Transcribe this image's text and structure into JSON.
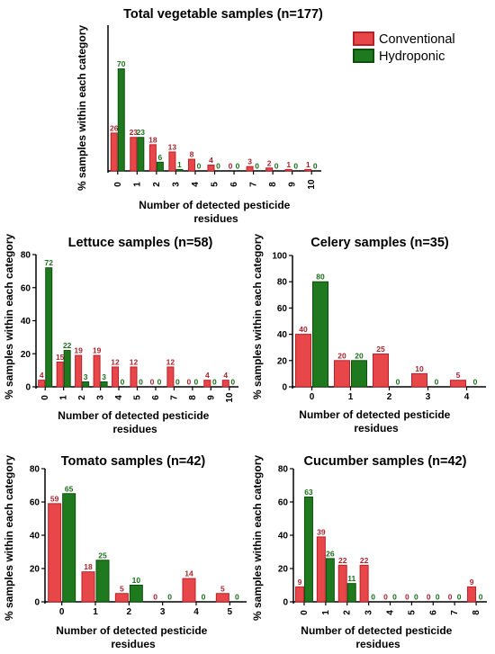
{
  "colors": {
    "conventional": "#e8474a",
    "conventional_stroke": "#b8202a",
    "hydroponic": "#1f7a1f",
    "hydroponic_stroke": "#0e4d0e",
    "conv_label": "#a8242c",
    "hydro_label": "#1b6e1b"
  },
  "legend": {
    "conventional": "Conventional",
    "hydroponic": "Hydroponic"
  },
  "chart_data": [
    {
      "type": "bar",
      "title": "Total vegetable samples (n=177)",
      "xlabel": "Number of detected pesticide residues",
      "ylabel": "% samples within each category",
      "categories": [
        "0",
        "1",
        "2",
        "3",
        "4",
        "5",
        "6",
        "7",
        "8",
        "9",
        "10"
      ],
      "ylim": [
        0,
        100
      ],
      "yticks": [],
      "series": [
        {
          "name": "Conventional",
          "values": [
            26,
            23,
            18,
            13,
            8,
            4,
            0,
            3,
            2,
            1,
            1
          ]
        },
        {
          "name": "Hydroponic",
          "values": [
            70,
            23,
            6,
            1,
            0,
            0,
            0,
            0,
            0,
            0,
            0
          ]
        }
      ]
    },
    {
      "type": "bar",
      "title": "Lettuce samples (n=58)",
      "xlabel": "Number of detected pesticide residues",
      "ylabel": "% samples within each category",
      "categories": [
        "0",
        "1",
        "2",
        "3",
        "4",
        "5",
        "6",
        "7",
        "8",
        "9",
        "10"
      ],
      "ylim": [
        0,
        80
      ],
      "yticks": [
        0,
        20,
        40,
        60,
        80
      ],
      "series": [
        {
          "name": "Conventional",
          "values": [
            4,
            15,
            19,
            19,
            12,
            12,
            0,
            12,
            0,
            4,
            4
          ]
        },
        {
          "name": "Hydroponic",
          "values": [
            72,
            22,
            3,
            3,
            0,
            0,
            0,
            0,
            0,
            0,
            0
          ]
        }
      ]
    },
    {
      "type": "bar",
      "title": "Celery samples (n=35)",
      "xlabel": "Number of detected pesticide residues",
      "ylabel": "% samples within each category",
      "categories": [
        "0",
        "1",
        "2",
        "3",
        "4"
      ],
      "ylim": [
        0,
        100
      ],
      "yticks": [
        0,
        20,
        40,
        60,
        80,
        100
      ],
      "series": [
        {
          "name": "Conventional",
          "values": [
            40,
            20,
            25,
            10,
            5
          ]
        },
        {
          "name": "Hydroponic",
          "values": [
            80,
            20,
            0,
            0,
            0
          ]
        }
      ]
    },
    {
      "type": "bar",
      "title": "Tomato samples (n=42)",
      "xlabel": "Number of detected pesticide residues",
      "ylabel": "% samples within each category",
      "categories": [
        "0",
        "1",
        "2",
        "3",
        "4",
        "5"
      ],
      "ylim": [
        0,
        80
      ],
      "yticks": [
        0,
        20,
        40,
        60,
        80
      ],
      "series": [
        {
          "name": "Conventional",
          "values": [
            59,
            18,
            5,
            0,
            14,
            5
          ]
        },
        {
          "name": "Hydroponic",
          "values": [
            65,
            25,
            10,
            0,
            0,
            0
          ]
        }
      ]
    },
    {
      "type": "bar",
      "title": "Cucumber samples (n=42)",
      "xlabel": "Number of detected pesticide residues",
      "ylabel": "% samples within each category",
      "categories": [
        "0",
        "1",
        "2",
        "3",
        "4",
        "5",
        "6",
        "7",
        "8"
      ],
      "ylim": [
        0,
        80
      ],
      "yticks": [
        0,
        20,
        40,
        60,
        80
      ],
      "series": [
        {
          "name": "Conventional",
          "values": [
            9,
            39,
            22,
            22,
            0,
            0,
            0,
            0,
            9
          ]
        },
        {
          "name": "Hydroponic",
          "values": [
            63,
            26,
            11,
            0,
            0,
            0,
            0,
            0,
            0
          ]
        }
      ]
    }
  ]
}
